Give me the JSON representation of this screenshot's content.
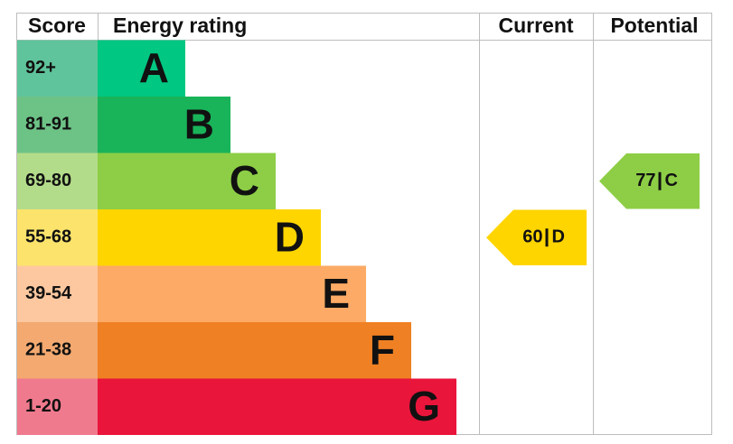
{
  "header": {
    "score": "Score",
    "rating": "Energy rating",
    "current": "Current",
    "potential": "Potential"
  },
  "bands": [
    {
      "score": "92+",
      "letter": "A",
      "color": "#00c781",
      "score_color": "#5fc49b"
    },
    {
      "score": "81-91",
      "letter": "B",
      "color": "#19b459",
      "score_color": "#6dc286"
    },
    {
      "score": "69-80",
      "letter": "C",
      "color": "#8dce46",
      "score_color": "#b3dc8a"
    },
    {
      "score": "55-68",
      "letter": "D",
      "color": "#ffd500",
      "score_color": "#fce36b"
    },
    {
      "score": "39-54",
      "letter": "E",
      "color": "#fcaa65",
      "score_color": "#fdc8a0"
    },
    {
      "score": "21-38",
      "letter": "F",
      "color": "#ef8023",
      "score_color": "#f3a970"
    },
    {
      "score": "1-20",
      "letter": "G",
      "color": "#e9153b",
      "score_color": "#f07a8d"
    }
  ],
  "current": {
    "value": 60,
    "letter": "D"
  },
  "potential": {
    "value": 77,
    "letter": "C"
  }
}
